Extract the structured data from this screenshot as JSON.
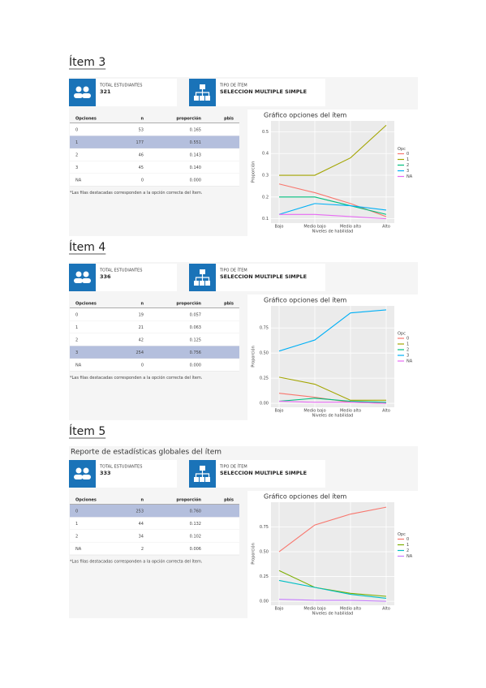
{
  "items": [
    {
      "title": "Ítem 3",
      "stats": [
        {
          "label": "TOTAL ESTUDIANTES",
          "value": 321
        },
        {
          "label": "TIPO DE ÍTEM",
          "value": "SELECCION MULTIPLE SIMPLE"
        }
      ],
      "table": {
        "columns": [
          "Opciones",
          "n",
          "proporción",
          "pbis"
        ],
        "highlight_row": 1,
        "rows": [
          [
            "0",
            "53",
            "0.165"
          ],
          [
            "1",
            "177",
            "0.551"
          ],
          [
            "2",
            "46",
            "0.143"
          ],
          [
            "3",
            "45",
            "0.140"
          ],
          [
            "NA",
            "0",
            "0.000"
          ]
        ]
      },
      "note": "*Las filas destacadas corresponden a la opción correcta del ítem.",
      "chart": {
        "type": "line",
        "title": "Gráfico opciones del ítem",
        "categories": [
          "Bajo",
          "Medio bajo",
          "Medio alto",
          "Alto"
        ],
        "xlabel": "Niveles de habilidad",
        "ylabel": "Proporción",
        "legend_title": "Opc",
        "ylim": [
          0.08,
          0.55
        ],
        "yticks": [
          0.1,
          0.2,
          0.3,
          0.4,
          0.5
        ],
        "series": [
          {
            "name": "0",
            "color": "#F8766D",
            "values": [
              0.26,
              0.22,
              0.17,
              0.11
            ]
          },
          {
            "name": "1",
            "color": "#A3A500",
            "values": [
              0.3,
              0.3,
              0.38,
              0.53
            ]
          },
          {
            "name": "2",
            "color": "#00BF7D",
            "values": [
              0.2,
              0.2,
              0.16,
              0.12
            ]
          },
          {
            "name": "3",
            "color": "#00B0F6",
            "values": [
              0.12,
              0.17,
              0.16,
              0.14
            ]
          },
          {
            "name": "NA",
            "color": "#E76BF3",
            "values": [
              0.12,
              0.12,
              0.11,
              0.1
            ]
          }
        ]
      }
    },
    {
      "title": "Ítem 4",
      "stats": [
        {
          "label": "TOTAL ESTUDIANTES",
          "value": 336
        },
        {
          "label": "TIPO DE ÍTEM",
          "value": "SELECCION MULTIPLE SIMPLE"
        }
      ],
      "table": {
        "columns": [
          "Opciones",
          "n",
          "proporción",
          "pbis"
        ],
        "highlight_row": 3,
        "rows": [
          [
            "0",
            "19",
            "0.057"
          ],
          [
            "1",
            "21",
            "0.063"
          ],
          [
            "2",
            "42",
            "0.125"
          ],
          [
            "3",
            "254",
            "0.756"
          ],
          [
            "NA",
            "0",
            "0.000"
          ]
        ]
      },
      "note": "*Las filas destacadas corresponden a la opción correcta del ítem.",
      "chart": {
        "type": "line",
        "title": "Gráfico opciones del ítem",
        "categories": [
          "Bajo",
          "Medio bajo",
          "Medio alto",
          "Alto"
        ],
        "xlabel": "Niveles de habilidad",
        "ylabel": "Proporción",
        "legend_title": "Opc",
        "ylim": [
          -0.04,
          0.97
        ],
        "yticks": [
          {
            "value": 0,
            "label": "0.00"
          },
          0.25,
          {
            "value": 0.5,
            "label": "0.50"
          },
          0.75
        ],
        "series": [
          {
            "name": "0",
            "color": "#F8766D",
            "values": [
              0.1,
              0.06,
              0.01,
              0.0
            ]
          },
          {
            "name": "1",
            "color": "#A3A500",
            "values": [
              0.26,
              0.19,
              0.03,
              0.03
            ]
          },
          {
            "name": "2",
            "color": "#00BF7D",
            "values": [
              0.02,
              0.05,
              0.02,
              0.01
            ]
          },
          {
            "name": "3",
            "color": "#00B0F6",
            "values": [
              0.52,
              0.63,
              0.9,
              0.93
            ]
          },
          {
            "name": "NA",
            "color": "#E76BF3",
            "values": [
              0.02,
              0.01,
              0.01,
              0.0
            ]
          }
        ]
      }
    },
    {
      "title": "Ítem 5",
      "subtitle": "Reporte de estadísticas globales del ítem",
      "stats": [
        {
          "label": "TOTAL ESTUDIANTES",
          "value": 333
        },
        {
          "label": "TIPO DE ÍTEM",
          "value": "SELECCION MULTIPLE SIMPLE"
        }
      ],
      "table": {
        "columns": [
          "Opciones",
          "n",
          "proporción",
          "pbis"
        ],
        "highlight_row": 0,
        "rows": [
          [
            "0",
            "253",
            "0.760"
          ],
          [
            "1",
            "44",
            "0.132"
          ],
          [
            "2",
            "34",
            "0.102"
          ],
          [
            "NA",
            "2",
            "0.006"
          ]
        ]
      },
      "note": "*Las filas destacadas corresponden a la opción correcta del ítem.",
      "chart": {
        "type": "line",
        "title": "Gráfico opciones del ítem",
        "categories": [
          "Bajo",
          "Medio bajo",
          "Medio alto",
          "Alto"
        ],
        "xlabel": "Niveles de habilidad",
        "ylabel": "Proporción",
        "legend_title": "Opc",
        "ylim": [
          -0.04,
          1.0
        ],
        "yticks": [
          {
            "value": 0,
            "label": "0.00"
          },
          0.25,
          {
            "value": 0.5,
            "label": "0.50"
          },
          0.75
        ],
        "series": [
          {
            "name": "0",
            "color": "#F8766D",
            "values": [
              0.5,
              0.77,
              0.88,
              0.95
            ]
          },
          {
            "name": "1",
            "color": "#7CAE00",
            "values": [
              0.31,
              0.14,
              0.08,
              0.05
            ]
          },
          {
            "name": "2",
            "color": "#00BFC4",
            "values": [
              0.21,
              0.14,
              0.07,
              0.03
            ]
          },
          {
            "name": "NA",
            "color": "#C77CFF",
            "values": [
              0.02,
              0.01,
              0.01,
              0.0
            ]
          }
        ]
      }
    }
  ]
}
